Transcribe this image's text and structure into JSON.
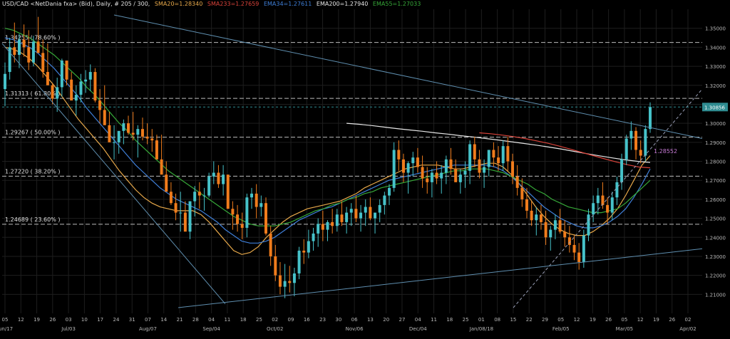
{
  "header": {
    "symbol": "USD/CAD <NetDania fxa> (Bid), Daily, # 205 / 300,",
    "indicators": [
      {
        "label": "SMA20=1.28340",
        "color": "#e8a94a"
      },
      {
        "label": "SMA233=1.27659",
        "color": "#d9433a"
      },
      {
        "label": "EMA34=1.27611",
        "color": "#3f7fd8"
      },
      {
        "label": "EMA200=1.27940",
        "color": "#e6e6e6"
      },
      {
        "label": "EMA55=1.27033",
        "color": "#36a838"
      }
    ]
  },
  "colors": {
    "background": "#000000",
    "grid": "#1e1e1e",
    "axis_text": "#b8b8b8",
    "candle_up": "#46c2c9",
    "candle_down": "#f07c1c",
    "fib_line": "#bbbbbb",
    "trendline": "#5f8fb0",
    "last_price_box": "#2f8c91",
    "sma20": "#e8a94a",
    "ema34": "#3f7fd8",
    "ema55": "#36a838",
    "ema200": "#e6e6e6",
    "sma233": "#d9433a",
    "trend_label": "#c77ad6"
  },
  "chart_data": {
    "type": "candlestick",
    "title": "USD/CAD <NetDania fxa> (Bid), Daily, # 205 / 300",
    "ylim": [
      1.2,
      1.36
    ],
    "y_ticks": [
      "1.35000",
      "1.34000",
      "1.33000",
      "1.32000",
      "1.31000",
      "1.30000",
      "1.29000",
      "1.28000",
      "1.27000",
      "1.26000",
      "1.25000",
      "1.24000",
      "1.23000",
      "1.22000",
      "1.21000"
    ],
    "x_ticks": [
      "05",
      "12",
      "19",
      "26",
      "03",
      "10",
      "17",
      "24",
      "31",
      "07",
      "14",
      "21",
      "28",
      "04",
      "11",
      "18",
      "25",
      "02",
      "09",
      "16",
      "23",
      "30",
      "06",
      "13",
      "20",
      "27",
      "04",
      "11",
      "18",
      "25",
      "01",
      "08",
      "15",
      "22",
      "29",
      "05",
      "12",
      "19",
      "26",
      "05",
      "12",
      "19",
      "26",
      "02"
    ],
    "x_month_labels": [
      "Jun/17",
      "Jul/03",
      "Aug/07",
      "Sep/04",
      "Oct/02",
      "Nov/06",
      "Dec/04",
      "Jan/08/18",
      "Feb/05",
      "Mar/05",
      "Apr/02"
    ],
    "last_price": "1.30856",
    "fib_levels": [
      {
        "label": "1.34255 ( 78.60% )",
        "value": 1.34255
      },
      {
        "label": "1.31313 ( 61.80% )",
        "value": 1.31313
      },
      {
        "label": "1.29267 ( 50.00% )",
        "value": 1.29267
      },
      {
        "label": "1.27220 ( 38.20% )",
        "value": 1.2722
      },
      {
        "label": "1.24689 ( 23.60% )",
        "value": 1.24689
      }
    ],
    "trendline_label": "1.28552",
    "candles_ohlc": [
      [
        1.318,
        1.332,
        1.309,
        1.326
      ],
      [
        1.327,
        1.345,
        1.323,
        1.34
      ],
      [
        1.34,
        1.353,
        1.332,
        1.336
      ],
      [
        1.336,
        1.347,
        1.329,
        1.344
      ],
      [
        1.344,
        1.352,
        1.335,
        1.34
      ],
      [
        1.34,
        1.349,
        1.328,
        1.332
      ],
      [
        1.332,
        1.346,
        1.33,
        1.343
      ],
      [
        1.343,
        1.356,
        1.338,
        1.337
      ],
      [
        1.337,
        1.344,
        1.324,
        1.327
      ],
      [
        1.327,
        1.342,
        1.322,
        1.32
      ],
      [
        1.32,
        1.321,
        1.31,
        1.313
      ],
      [
        1.313,
        1.324,
        1.306,
        1.319
      ],
      [
        1.319,
        1.334,
        1.314,
        1.333
      ],
      [
        1.333,
        1.332,
        1.32,
        1.323
      ],
      [
        1.323,
        1.327,
        1.313,
        1.312
      ],
      [
        1.312,
        1.32,
        1.304,
        1.315
      ],
      [
        1.315,
        1.326,
        1.311,
        1.322
      ],
      [
        1.322,
        1.328,
        1.316,
        1.323
      ],
      [
        1.323,
        1.331,
        1.317,
        1.327
      ],
      [
        1.327,
        1.329,
        1.311,
        1.312
      ],
      [
        1.312,
        1.318,
        1.3,
        1.307
      ],
      [
        1.307,
        1.32,
        1.303,
        1.299
      ],
      [
        1.299,
        1.306,
        1.292,
        1.29
      ],
      [
        1.29,
        1.299,
        1.281,
        1.29
      ],
      [
        1.29,
        1.294,
        1.284,
        1.296
      ],
      [
        1.296,
        1.302,
        1.289,
        1.3
      ],
      [
        1.3,
        1.304,
        1.294,
        1.295
      ],
      [
        1.295,
        1.306,
        1.291,
        1.294
      ],
      [
        1.294,
        1.299,
        1.282,
        1.297
      ],
      [
        1.297,
        1.303,
        1.291,
        1.293
      ],
      [
        1.293,
        1.3,
        1.289,
        1.292
      ],
      [
        1.292,
        1.297,
        1.285,
        1.291
      ],
      [
        1.291,
        1.294,
        1.286,
        1.281
      ],
      [
        1.281,
        1.294,
        1.274,
        1.273
      ],
      [
        1.273,
        1.28,
        1.267,
        1.264
      ],
      [
        1.264,
        1.269,
        1.257,
        1.258
      ],
      [
        1.258,
        1.263,
        1.249,
        1.253
      ],
      [
        1.253,
        1.264,
        1.243,
        1.253
      ],
      [
        1.253,
        1.259,
        1.245,
        1.243
      ],
      [
        1.243,
        1.256,
        1.239,
        1.259
      ],
      [
        1.259,
        1.267,
        1.251,
        1.264
      ],
      [
        1.264,
        1.269,
        1.255,
        1.262
      ],
      [
        1.262,
        1.266,
        1.254,
        1.262
      ],
      [
        1.262,
        1.274,
        1.261,
        1.272
      ],
      [
        1.272,
        1.28,
        1.268,
        1.274
      ],
      [
        1.274,
        1.278,
        1.266,
        1.268
      ],
      [
        1.268,
        1.278,
        1.262,
        1.273
      ],
      [
        1.273,
        1.271,
        1.256,
        1.255
      ],
      [
        1.255,
        1.259,
        1.244,
        1.252
      ],
      [
        1.252,
        1.257,
        1.243,
        1.247
      ],
      [
        1.247,
        1.253,
        1.239,
        1.245
      ],
      [
        1.245,
        1.263,
        1.24,
        1.261
      ],
      [
        1.261,
        1.266,
        1.255,
        1.263
      ],
      [
        1.263,
        1.268,
        1.25,
        1.256
      ],
      [
        1.256,
        1.262,
        1.251,
        1.258
      ],
      [
        1.258,
        1.261,
        1.241,
        1.242
      ],
      [
        1.242,
        1.246,
        1.225,
        1.23
      ],
      [
        1.23,
        1.236,
        1.217,
        1.22
      ],
      [
        1.22,
        1.227,
        1.21,
        1.214
      ],
      [
        1.214,
        1.226,
        1.208,
        1.217
      ],
      [
        1.217,
        1.225,
        1.211,
        1.216
      ],
      [
        1.216,
        1.224,
        1.209,
        1.221
      ],
      [
        1.221,
        1.235,
        1.218,
        1.233
      ],
      [
        1.233,
        1.239,
        1.226,
        1.232
      ],
      [
        1.232,
        1.244,
        1.229,
        1.238
      ],
      [
        1.238,
        1.245,
        1.233,
        1.242
      ],
      [
        1.242,
        1.25,
        1.235,
        1.247
      ],
      [
        1.247,
        1.254,
        1.238,
        1.244
      ],
      [
        1.244,
        1.249,
        1.238,
        1.248
      ],
      [
        1.248,
        1.255,
        1.242,
        1.246
      ],
      [
        1.246,
        1.255,
        1.243,
        1.252
      ],
      [
        1.252,
        1.259,
        1.246,
        1.248
      ],
      [
        1.248,
        1.256,
        1.242,
        1.253
      ],
      [
        1.253,
        1.258,
        1.246,
        1.255
      ],
      [
        1.255,
        1.262,
        1.248,
        1.25
      ],
      [
        1.25,
        1.257,
        1.243,
        1.253
      ],
      [
        1.253,
        1.26,
        1.246,
        1.256
      ],
      [
        1.256,
        1.261,
        1.249,
        1.25
      ],
      [
        1.25,
        1.252,
        1.242,
        1.253
      ],
      [
        1.253,
        1.26,
        1.248,
        1.257
      ],
      [
        1.257,
        1.264,
        1.252,
        1.262
      ],
      [
        1.262,
        1.268,
        1.257,
        1.266
      ],
      [
        1.266,
        1.29,
        1.264,
        1.286
      ],
      [
        1.286,
        1.291,
        1.275,
        1.281
      ],
      [
        1.281,
        1.284,
        1.269,
        1.274
      ],
      [
        1.274,
        1.28,
        1.263,
        1.279
      ],
      [
        1.279,
        1.285,
        1.272,
        1.282
      ],
      [
        1.282,
        1.287,
        1.274,
        1.277
      ],
      [
        1.277,
        1.283,
        1.266,
        1.271
      ],
      [
        1.271,
        1.277,
        1.263,
        1.269
      ],
      [
        1.269,
        1.276,
        1.261,
        1.274
      ],
      [
        1.274,
        1.28,
        1.268,
        1.271
      ],
      [
        1.271,
        1.278,
        1.263,
        1.274
      ],
      [
        1.274,
        1.283,
        1.268,
        1.281
      ],
      [
        1.281,
        1.287,
        1.273,
        1.276
      ],
      [
        1.276,
        1.281,
        1.27,
        1.269
      ],
      [
        1.269,
        1.276,
        1.263,
        1.273
      ],
      [
        1.273,
        1.28,
        1.266,
        1.275
      ],
      [
        1.275,
        1.291,
        1.268,
        1.289
      ],
      [
        1.289,
        1.293,
        1.277,
        1.281
      ],
      [
        1.281,
        1.286,
        1.271,
        1.274
      ],
      [
        1.274,
        1.281,
        1.266,
        1.277
      ],
      [
        1.277,
        1.284,
        1.272,
        1.286
      ],
      [
        1.286,
        1.29,
        1.277,
        1.282
      ],
      [
        1.282,
        1.288,
        1.275,
        1.279
      ],
      [
        1.279,
        1.291,
        1.275,
        1.288
      ],
      [
        1.288,
        1.293,
        1.275,
        1.28
      ],
      [
        1.28,
        1.284,
        1.268,
        1.272
      ],
      [
        1.272,
        1.278,
        1.262,
        1.266
      ],
      [
        1.266,
        1.271,
        1.256,
        1.26
      ],
      [
        1.26,
        1.266,
        1.25,
        1.254
      ],
      [
        1.254,
        1.259,
        1.246,
        1.249
      ],
      [
        1.249,
        1.256,
        1.241,
        1.252
      ],
      [
        1.252,
        1.257,
        1.244,
        1.248
      ],
      [
        1.248,
        1.254,
        1.236,
        1.24
      ],
      [
        1.24,
        1.246,
        1.233,
        1.244
      ],
      [
        1.244,
        1.252,
        1.239,
        1.249
      ],
      [
        1.249,
        1.255,
        1.242,
        1.243
      ],
      [
        1.243,
        1.249,
        1.235,
        1.24
      ],
      [
        1.24,
        1.246,
        1.232,
        1.236
      ],
      [
        1.236,
        1.241,
        1.228,
        1.232
      ],
      [
        1.232,
        1.237,
        1.223,
        1.227
      ],
      [
        1.227,
        1.244,
        1.224,
        1.241
      ],
      [
        1.241,
        1.255,
        1.238,
        1.252
      ],
      [
        1.252,
        1.262,
        1.248,
        1.258
      ],
      [
        1.258,
        1.266,
        1.252,
        1.262
      ],
      [
        1.262,
        1.269,
        1.255,
        1.257
      ],
      [
        1.257,
        1.261,
        1.247,
        1.253
      ],
      [
        1.253,
        1.264,
        1.249,
        1.261
      ],
      [
        1.261,
        1.272,
        1.257,
        1.269
      ],
      [
        1.269,
        1.284,
        1.265,
        1.281
      ],
      [
        1.281,
        1.294,
        1.278,
        1.292
      ],
      [
        1.292,
        1.301,
        1.286,
        1.296
      ],
      [
        1.296,
        1.298,
        1.281,
        1.286
      ],
      [
        1.286,
        1.291,
        1.279,
        1.283
      ],
      [
        1.283,
        1.299,
        1.28,
        1.297
      ],
      [
        1.297,
        1.311,
        1.295,
        1.3086
      ]
    ],
    "moving_averages": [
      {
        "name": "SMA20",
        "value": 1.2834,
        "values": [
          1.34,
          1.339,
          1.337,
          1.334,
          1.33,
          1.325,
          1.32,
          1.314,
          1.308,
          1.302,
          1.297,
          1.292,
          1.287,
          1.281,
          1.275,
          1.27,
          1.265,
          1.261,
          1.258,
          1.256,
          1.255,
          1.254,
          1.254,
          1.254,
          1.252,
          1.248,
          1.243,
          1.238,
          1.233,
          1.231,
          1.232,
          1.235,
          1.24,
          1.244,
          1.248,
          1.251,
          1.253,
          1.255,
          1.256,
          1.257,
          1.258,
          1.259,
          1.261,
          1.263,
          1.266,
          1.268,
          1.27,
          1.272,
          1.274,
          1.276,
          1.277,
          1.278,
          1.278,
          1.278,
          1.277,
          1.276,
          1.276,
          1.277,
          1.278,
          1.279,
          1.279,
          1.277,
          1.273,
          1.268,
          1.262,
          1.256,
          1.251,
          1.247,
          1.244,
          1.242,
          1.241,
          1.241,
          1.243,
          1.246,
          1.25,
          1.255,
          1.262,
          1.27,
          1.278,
          1.283
        ]
      },
      {
        "name": "EMA34",
        "value": 1.27611,
        "values": [
          1.345,
          1.344,
          1.342,
          1.34,
          1.337,
          1.333,
          1.329,
          1.324,
          1.319,
          1.314,
          1.308,
          1.303,
          1.298,
          1.293,
          1.288,
          1.283,
          1.278,
          1.274,
          1.27,
          1.266,
          1.263,
          1.26,
          1.258,
          1.256,
          1.254,
          1.251,
          1.248,
          1.244,
          1.241,
          1.238,
          1.237,
          1.237,
          1.238,
          1.24,
          1.243,
          1.246,
          1.249,
          1.251,
          1.253,
          1.255,
          1.256,
          1.258,
          1.26,
          1.262,
          1.264,
          1.266,
          1.268,
          1.27,
          1.271,
          1.272,
          1.273,
          1.274,
          1.275,
          1.276,
          1.277,
          1.278,
          1.278,
          1.278,
          1.278,
          1.278,
          1.277,
          1.275,
          1.272,
          1.268,
          1.264,
          1.26,
          1.256,
          1.253,
          1.25,
          1.248,
          1.246,
          1.245,
          1.245,
          1.246,
          1.248,
          1.251,
          1.255,
          1.261,
          1.268,
          1.276
        ]
      },
      {
        "name": "EMA55",
        "value": 1.27033,
        "values": [
          1.35,
          1.349,
          1.347,
          1.345,
          1.342,
          1.339,
          1.336,
          1.332,
          1.328,
          1.324,
          1.319,
          1.315,
          1.31,
          1.305,
          1.3,
          1.296,
          1.291,
          1.287,
          1.283,
          1.279,
          1.275,
          1.272,
          1.269,
          1.266,
          1.263,
          1.26,
          1.257,
          1.254,
          1.251,
          1.249,
          1.247,
          1.246,
          1.246,
          1.246,
          1.247,
          1.248,
          1.25,
          1.252,
          1.254,
          1.255,
          1.257,
          1.258,
          1.26,
          1.261,
          1.263,
          1.264,
          1.266,
          1.267,
          1.268,
          1.269,
          1.27,
          1.271,
          1.272,
          1.273,
          1.274,
          1.275,
          1.275,
          1.276,
          1.276,
          1.276,
          1.275,
          1.274,
          1.272,
          1.27,
          1.268,
          1.265,
          1.263,
          1.26,
          1.258,
          1.256,
          1.255,
          1.254,
          1.253,
          1.253,
          1.254,
          1.255,
          1.258,
          1.262,
          1.266,
          1.27
        ]
      },
      {
        "name": "EMA200",
        "value": 1.2794,
        "values": [
          1.3,
          1.2995,
          1.2988,
          1.298,
          1.2972,
          1.2965,
          1.2958,
          1.295,
          1.2943,
          1.2935,
          1.2928,
          1.292,
          1.2912,
          1.2903,
          1.2894,
          1.2885,
          1.2875,
          1.2864,
          1.2852,
          1.284,
          1.2829,
          1.2818,
          1.2808,
          1.28,
          1.2794
        ]
      },
      {
        "name": "SMA233",
        "value": 1.27659,
        "values": [
          1.295,
          1.2945,
          1.2938,
          1.293,
          1.292,
          1.2908,
          1.2895,
          1.288,
          1.2864,
          1.2847,
          1.283,
          1.2813,
          1.2797,
          1.2782,
          1.277,
          1.2766
        ]
      }
    ]
  }
}
